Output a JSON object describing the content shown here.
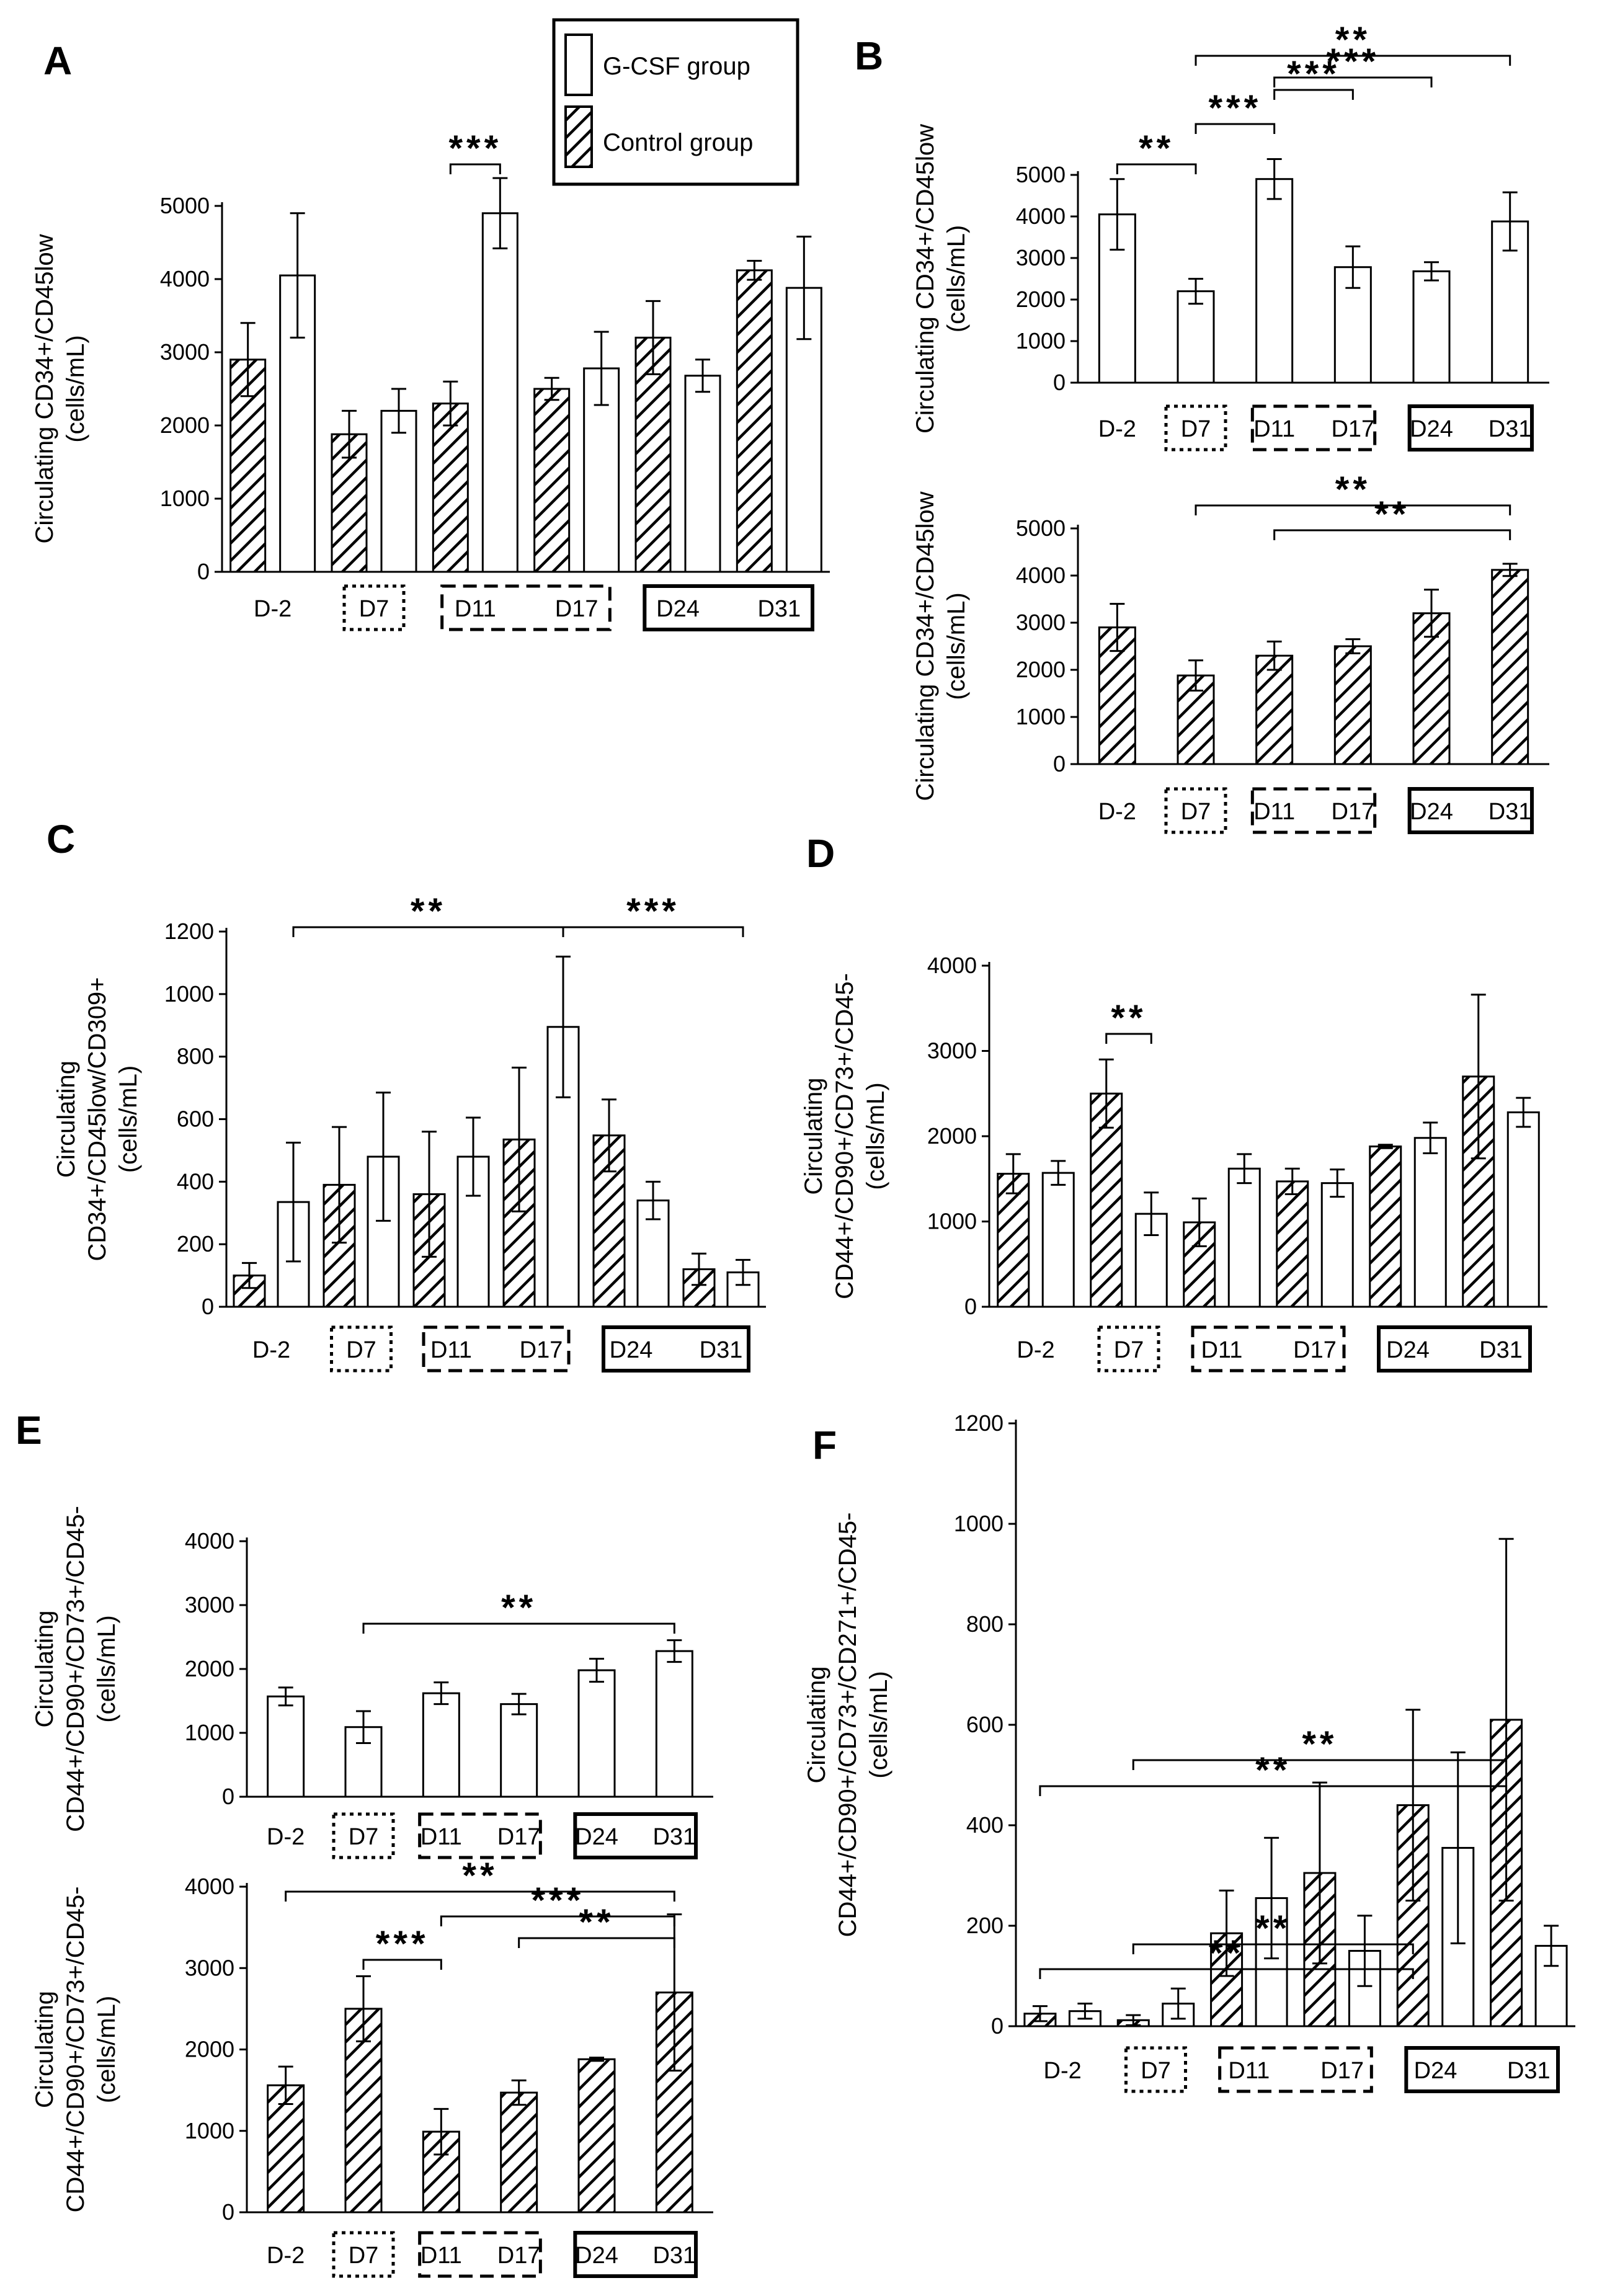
{
  "legend": {
    "gcsf_label": "G-CSF group",
    "control_label": "Control group"
  },
  "chart_data": [
    {
      "panel": "A",
      "type": "bar",
      "ylabel_lines": [
        "Circulating CD34+/CD45low",
        "(cells/mL)"
      ],
      "ylim": [
        0,
        5000
      ],
      "yticks": [
        0,
        1000,
        2000,
        3000,
        4000,
        5000
      ],
      "categories": [
        "D-2",
        "D7",
        "D11",
        "D17",
        "D24",
        "D31"
      ],
      "series": [
        {
          "name": "Control group",
          "pattern": "hatch",
          "values": [
            2900,
            1880,
            2300,
            2500,
            3200,
            4120
          ],
          "errors": [
            500,
            320,
            300,
            150,
            500,
            130
          ]
        },
        {
          "name": "G-CSF group",
          "pattern": "open",
          "values": [
            4050,
            2200,
            4900,
            2780,
            2680,
            3880
          ],
          "errors": [
            850,
            300,
            480,
            500,
            220,
            700
          ]
        }
      ],
      "significance": [
        {
          "from": "D11.Control group",
          "to": "D11.G-CSF group",
          "label": "***"
        }
      ],
      "boxes": [
        {
          "style": "dotted",
          "categories": [
            "D7"
          ]
        },
        {
          "style": "dashed",
          "categories": [
            "D11",
            "D17"
          ]
        },
        {
          "style": "solid",
          "categories": [
            "D24",
            "D31"
          ]
        }
      ]
    },
    {
      "panel": "B",
      "type": "bar",
      "ylabel_lines": [
        "Circulating CD34+/CD45low",
        "(cells/mL)"
      ],
      "ylim": [
        0,
        5000
      ],
      "yticks": [
        0,
        1000,
        2000,
        3000,
        4000,
        5000
      ],
      "categories": [
        "D-2",
        "D7",
        "D11",
        "D17",
        "D24",
        "D31"
      ],
      "series": [
        {
          "name": "G-CSF group",
          "pattern": "open",
          "values": [
            4050,
            2200,
            4900,
            2780,
            2680,
            3880
          ],
          "errors": [
            850,
            300,
            480,
            500,
            220,
            700
          ]
        }
      ],
      "significance": [
        {
          "from": "D-2",
          "to": "D7",
          "label": "**"
        },
        {
          "from": "D7",
          "to": "D11",
          "label": "***"
        },
        {
          "from": "D11",
          "to": "D17",
          "label": "***"
        },
        {
          "from": "D11",
          "to": "D24",
          "label": "***"
        },
        {
          "from": "D7",
          "to": "D31",
          "label": "**"
        }
      ],
      "boxes": [
        {
          "style": "dotted",
          "categories": [
            "D7"
          ]
        },
        {
          "style": "dashed",
          "categories": [
            "D11",
            "D17"
          ]
        },
        {
          "style": "solid",
          "categories": [
            "D24",
            "D31"
          ]
        }
      ]
    },
    {
      "panel": "B2",
      "type": "bar",
      "ylabel_lines": [
        "Circulating CD34+/CD45low",
        "(cells/mL)"
      ],
      "ylim": [
        0,
        5000
      ],
      "yticks": [
        0,
        1000,
        2000,
        3000,
        4000,
        5000
      ],
      "categories": [
        "D-2",
        "D7",
        "D11",
        "D17",
        "D24",
        "D31"
      ],
      "series": [
        {
          "name": "Control group",
          "pattern": "hatch",
          "values": [
            2900,
            1880,
            2300,
            2500,
            3200,
            4120
          ],
          "errors": [
            500,
            320,
            300,
            150,
            500,
            130
          ]
        }
      ],
      "significance": [
        {
          "from": "D7",
          "to": "D31",
          "label": "**"
        },
        {
          "from": "D11",
          "to": "D31",
          "label": "**"
        }
      ],
      "boxes": [
        {
          "style": "dotted",
          "categories": [
            "D7"
          ]
        },
        {
          "style": "dashed",
          "categories": [
            "D11",
            "D17"
          ]
        },
        {
          "style": "solid",
          "categories": [
            "D24",
            "D31"
          ]
        }
      ]
    },
    {
      "panel": "C",
      "type": "bar",
      "ylabel_lines": [
        "Circulating",
        "CD34+/CD45low/CD309+",
        "(cells/mL)"
      ],
      "ylim": [
        0,
        1200
      ],
      "yticks": [
        0,
        200,
        400,
        600,
        800,
        1000,
        1200
      ],
      "categories": [
        "D-2",
        "D7",
        "D11",
        "D17",
        "D24",
        "D31"
      ],
      "series": [
        {
          "name": "Control group",
          "pattern": "hatch",
          "values": [
            100,
            390,
            360,
            535,
            548,
            120
          ],
          "errors": [
            40,
            185,
            200,
            230,
            115,
            50
          ]
        },
        {
          "name": "G-CSF group",
          "pattern": "open",
          "values": [
            335,
            480,
            480,
            895,
            340,
            110
          ],
          "errors": [
            190,
            205,
            125,
            225,
            60,
            40
          ]
        }
      ],
      "significance": [
        {
          "from": "D-2.G-CSF group",
          "to": "D17.G-CSF group",
          "label": "**"
        },
        {
          "from": "D17.G-CSF group",
          "to": "D31.G-CSF group",
          "label": "***"
        }
      ],
      "boxes": [
        {
          "style": "dotted",
          "categories": [
            "D7"
          ]
        },
        {
          "style": "dashed",
          "categories": [
            "D11",
            "D17"
          ]
        },
        {
          "style": "solid",
          "categories": [
            "D24",
            "D31"
          ]
        }
      ]
    },
    {
      "panel": "D",
      "type": "bar",
      "ylabel_lines": [
        "Circulating",
        "CD44+/CD90+/CD73+/CD45-",
        "(cells/mL)"
      ],
      "ylim": [
        0,
        4000
      ],
      "yticks": [
        0,
        1000,
        2000,
        3000,
        4000
      ],
      "categories": [
        "D-2",
        "D7",
        "D11",
        "D17",
        "D24",
        "D31"
      ],
      "series": [
        {
          "name": "Control group",
          "pattern": "hatch",
          "values": [
            1560,
            2500,
            990,
            1470,
            1880,
            2700
          ],
          "errors": [
            230,
            400,
            280,
            150,
            20,
            960
          ]
        },
        {
          "name": "G-CSF group",
          "pattern": "open",
          "values": [
            1570,
            1090,
            1620,
            1450,
            1980,
            2280
          ],
          "errors": [
            140,
            250,
            170,
            160,
            180,
            170
          ]
        }
      ],
      "significance": [
        {
          "from": "D7.Control group",
          "to": "D7.G-CSF group",
          "label": "**"
        }
      ],
      "boxes": [
        {
          "style": "dotted",
          "categories": [
            "D7"
          ]
        },
        {
          "style": "dashed",
          "categories": [
            "D11",
            "D17"
          ]
        },
        {
          "style": "solid",
          "categories": [
            "D24",
            "D31"
          ]
        }
      ]
    },
    {
      "panel": "E",
      "type": "bar",
      "ylabel_lines": [
        "Circulating",
        "CD44+/CD90+/CD73+/CD45-",
        "(cells/mL)"
      ],
      "ylim": [
        0,
        4000
      ],
      "yticks": [
        0,
        1000,
        2000,
        3000,
        4000
      ],
      "categories": [
        "D-2",
        "D7",
        "D11",
        "D17",
        "D24",
        "D31"
      ],
      "series": [
        {
          "name": "G-CSF group",
          "pattern": "open",
          "values": [
            1570,
            1090,
            1620,
            1450,
            1980,
            2280
          ],
          "errors": [
            140,
            250,
            170,
            160,
            180,
            170
          ]
        }
      ],
      "significance": [
        {
          "from": "D7",
          "to": "D31",
          "label": "**"
        }
      ],
      "boxes": [
        {
          "style": "dotted",
          "categories": [
            "D7"
          ]
        },
        {
          "style": "dashed",
          "categories": [
            "D11",
            "D17"
          ]
        },
        {
          "style": "solid",
          "categories": [
            "D24",
            "D31"
          ]
        }
      ]
    },
    {
      "panel": "E2",
      "type": "bar",
      "ylabel_lines": [
        "Circulating",
        "CD44+/CD90+/CD73+/CD45-",
        "(cells/mL)"
      ],
      "ylim": [
        0,
        4000
      ],
      "yticks": [
        0,
        1000,
        2000,
        3000,
        4000
      ],
      "categories": [
        "D-2",
        "D7",
        "D11",
        "D17",
        "D24",
        "D31"
      ],
      "series": [
        {
          "name": "Control group",
          "pattern": "hatch",
          "values": [
            1560,
            2500,
            990,
            1470,
            1880,
            2700
          ],
          "errors": [
            230,
            400,
            280,
            150,
            20,
            960
          ]
        }
      ],
      "significance": [
        {
          "from": "D7",
          "to": "D11",
          "label": "***"
        },
        {
          "from": "D17",
          "to": "D31",
          "label": "**"
        },
        {
          "from": "D11",
          "to": "D31",
          "label": "***"
        },
        {
          "from": "D-2",
          "to": "D31",
          "label": "**"
        }
      ],
      "boxes": [
        {
          "style": "dotted",
          "categories": [
            "D7"
          ]
        },
        {
          "style": "dashed",
          "categories": [
            "D11",
            "D17"
          ]
        },
        {
          "style": "solid",
          "categories": [
            "D24",
            "D31"
          ]
        }
      ]
    },
    {
      "panel": "F",
      "type": "bar",
      "ylabel_lines": [
        "Circulating",
        "CD44+/CD90+/CD73+/CD271+/CD45-",
        "(cells/mL)"
      ],
      "ylim": [
        0,
        1200
      ],
      "yticks": [
        0,
        200,
        400,
        600,
        800,
        1000,
        1200
      ],
      "categories": [
        "D-2",
        "D7",
        "D11",
        "D17",
        "D24",
        "D31"
      ],
      "series": [
        {
          "name": "Control group",
          "pattern": "hatch",
          "values": [
            25,
            12,
            185,
            305,
            440,
            610
          ],
          "errors": [
            15,
            10,
            85,
            180,
            190,
            360
          ]
        },
        {
          "name": "G-CSF group",
          "pattern": "open",
          "values": [
            30,
            45,
            255,
            150,
            355,
            160
          ],
          "errors": [
            15,
            30,
            120,
            70,
            190,
            40
          ]
        }
      ],
      "significance": [
        {
          "from": "D-2.Control group",
          "to": "D24.Control group",
          "label": "**"
        },
        {
          "from": "D7.Control group",
          "to": "D24.Control group",
          "label": "**"
        },
        {
          "from": "D-2.Control group",
          "to": "D31.Control group",
          "label": "**"
        },
        {
          "from": "D7.Control group",
          "to": "D31.Control group",
          "label": "**"
        }
      ],
      "boxes": [
        {
          "style": "dotted",
          "categories": [
            "D7"
          ]
        },
        {
          "style": "dashed",
          "categories": [
            "D11",
            "D17"
          ]
        },
        {
          "style": "solid",
          "categories": [
            "D24",
            "D31"
          ]
        }
      ]
    }
  ]
}
